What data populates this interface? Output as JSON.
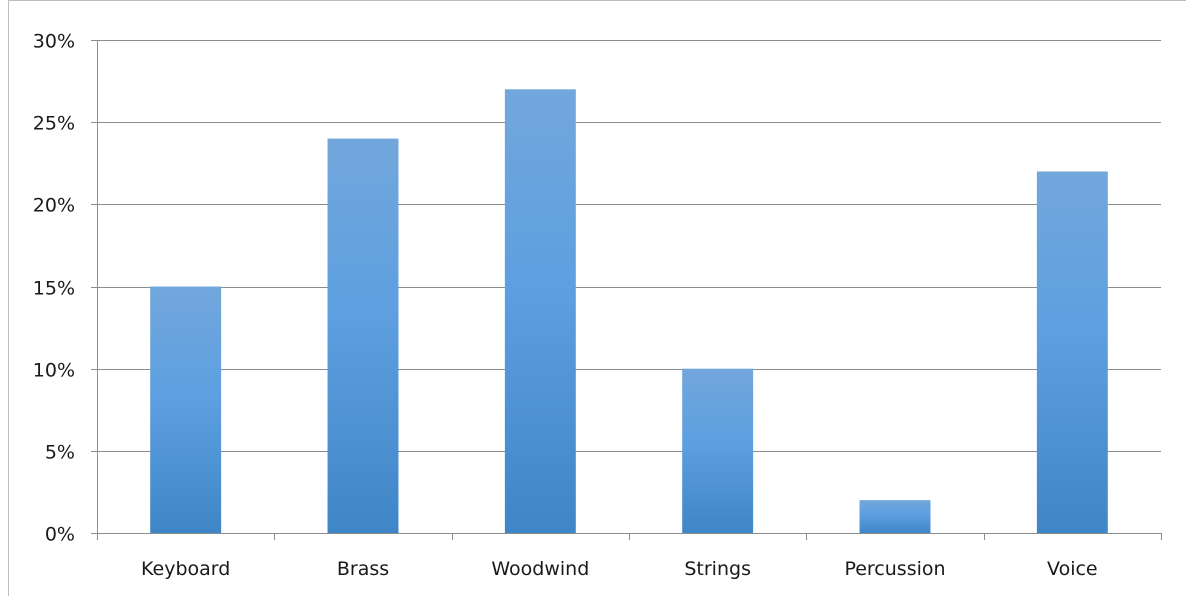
{
  "chart_data": {
    "type": "bar",
    "categories": [
      "Keyboard",
      "Brass",
      "Woodwind",
      "Strings",
      "Percussion",
      "Voice"
    ],
    "values": [
      15,
      24,
      27,
      10,
      2,
      22
    ],
    "value_unit": "%",
    "ylim": [
      0,
      30
    ],
    "yticks": [
      0,
      5,
      10,
      15,
      20,
      25,
      30
    ],
    "ytick_labels": [
      "0%",
      "5%",
      "10%",
      "15%",
      "20%",
      "25%",
      "30%"
    ],
    "title": "",
    "xlabel": "",
    "ylabel": "",
    "grid": true,
    "legend": "none",
    "colors": {
      "bar_top": "#72a7dc",
      "bar_mid": "#5d9fe0",
      "bar_bottom": "#3f86c6",
      "gridline": "#8c8c8c",
      "axis": "#8c8c8c",
      "text": "#1a1a1a"
    }
  }
}
